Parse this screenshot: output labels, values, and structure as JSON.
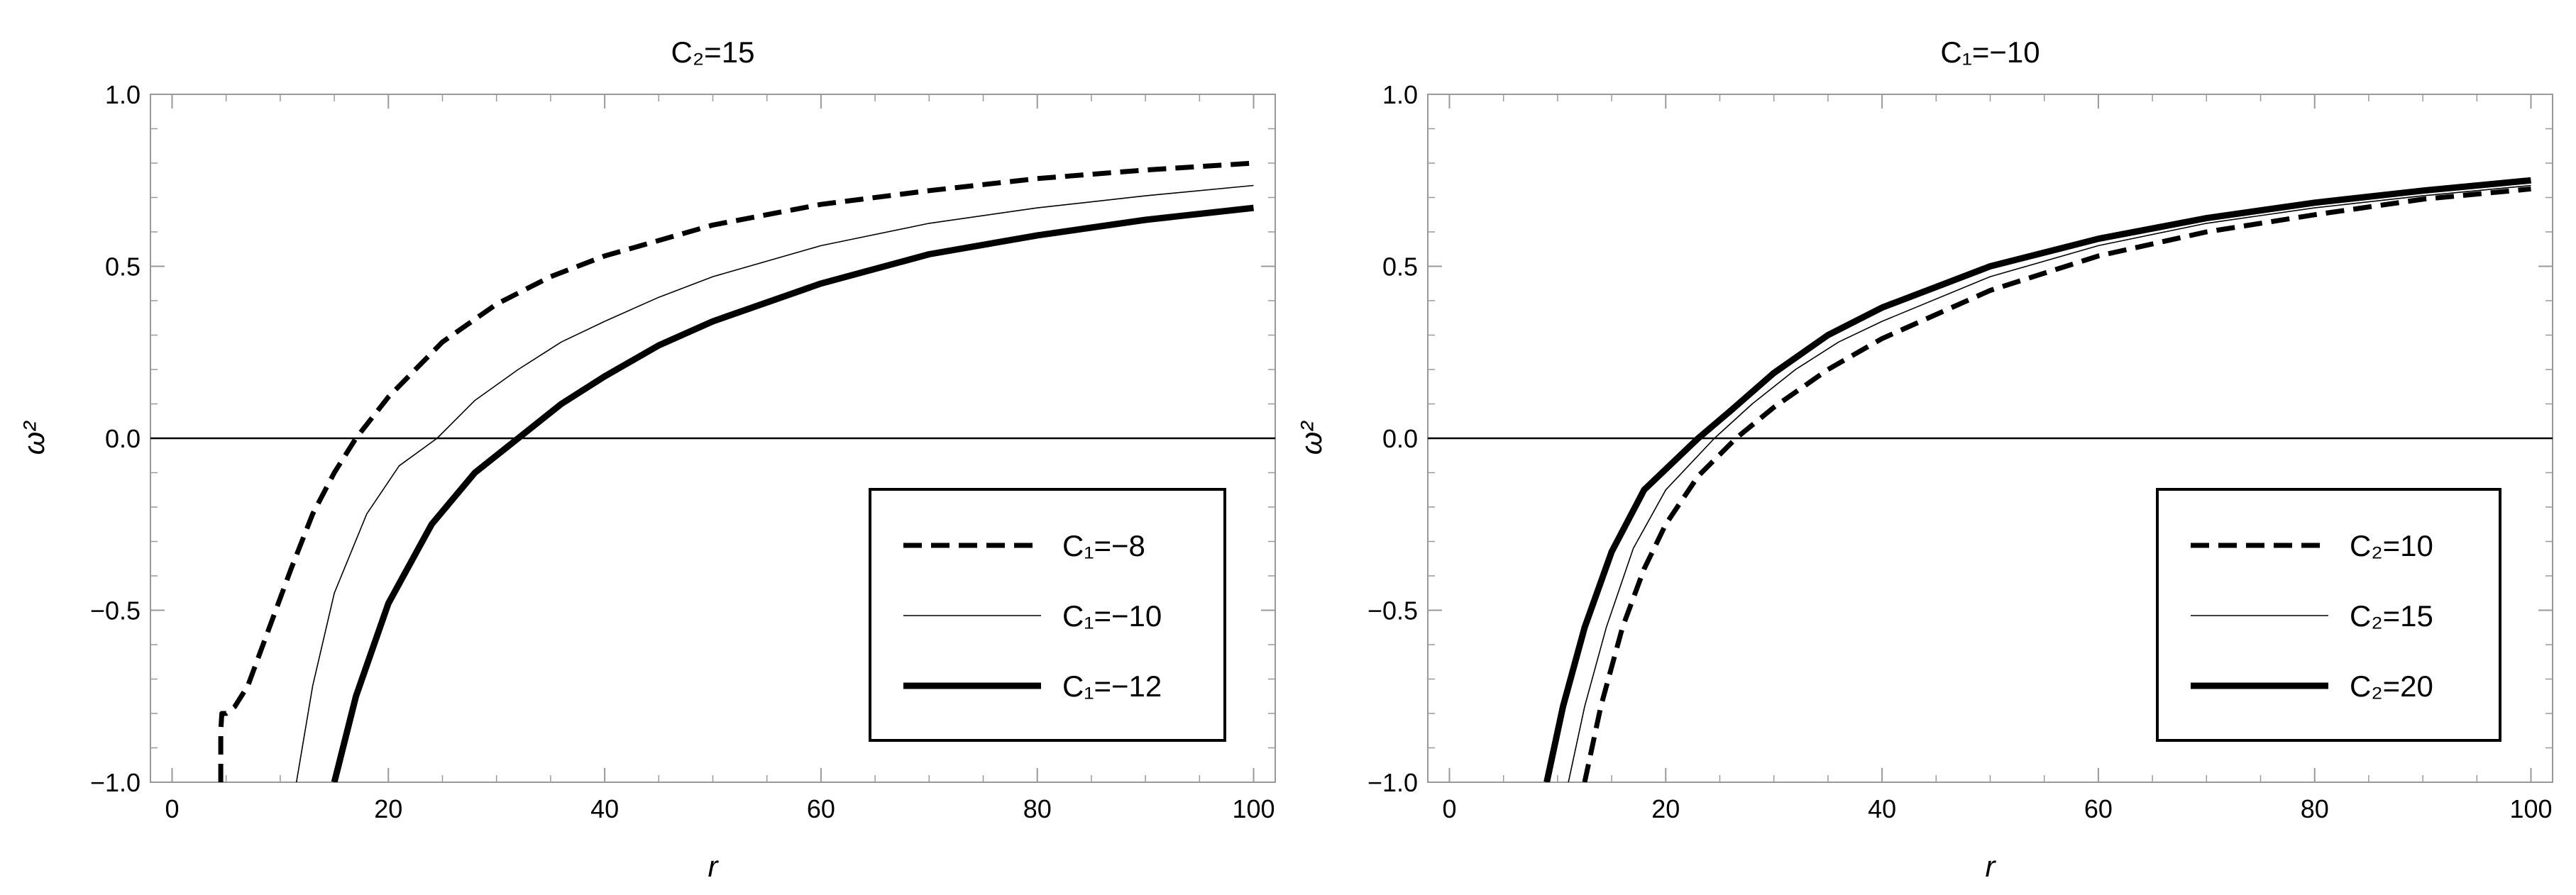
{
  "chart_data": [
    {
      "type": "line",
      "title": "C₂=15",
      "xlabel": "r",
      "ylabel": "ω²",
      "xlim": [
        -2,
        102
      ],
      "ylim": [
        -1,
        1
      ],
      "xticks": [
        0,
        20,
        40,
        60,
        80,
        100
      ],
      "yticks": [
        -1.0,
        -0.5,
        0.0,
        0.5,
        1.0
      ],
      "ytick_labels": [
        "−1.0",
        "−0.5",
        "0.0",
        "0.5",
        "1.0"
      ],
      "zero_line": true,
      "grid": false,
      "legend_position": "bottom-right",
      "series": [
        {
          "name": "C₁=−8",
          "style": "dashed",
          "weight": "thick",
          "x": [
            4.5,
            4.5,
            4.6,
            5,
            5.8,
            7,
            9,
            11,
            13,
            15,
            17,
            20,
            25,
            30,
            35,
            40,
            50,
            60,
            70,
            80,
            90,
            100
          ],
          "y": [
            -1.0,
            -0.85,
            -0.8,
            -0.8,
            -0.78,
            -0.72,
            -0.55,
            -0.38,
            -0.22,
            -0.1,
            0.0,
            0.12,
            0.28,
            0.39,
            0.47,
            0.53,
            0.62,
            0.68,
            0.72,
            0.755,
            0.78,
            0.8
          ]
        },
        {
          "name": "C₁=−10",
          "style": "solid",
          "weight": "thin",
          "x": [
            11.5,
            13,
            15,
            18,
            21,
            24.5,
            28,
            32,
            36,
            40,
            45,
            50,
            60,
            70,
            80,
            90,
            100
          ],
          "y": [
            -1.0,
            -0.72,
            -0.45,
            -0.22,
            -0.08,
            0.0,
            0.11,
            0.2,
            0.28,
            0.34,
            0.41,
            0.47,
            0.56,
            0.625,
            0.67,
            0.705,
            0.735
          ]
        },
        {
          "name": "C₁=−12",
          "style": "solid",
          "weight": "thick",
          "x": [
            15,
            17,
            20,
            24,
            28,
            32,
            36,
            40,
            45,
            50,
            60,
            70,
            80,
            90,
            100
          ],
          "y": [
            -1.0,
            -0.75,
            -0.48,
            -0.25,
            -0.1,
            0.0,
            0.1,
            0.18,
            0.27,
            0.34,
            0.45,
            0.535,
            0.59,
            0.635,
            0.67
          ]
        }
      ]
    },
    {
      "type": "line",
      "title": "C₁=−10",
      "xlabel": "r",
      "ylabel": "ω²",
      "xlim": [
        -2,
        102
      ],
      "ylim": [
        -1,
        1
      ],
      "xticks": [
        0,
        20,
        40,
        60,
        80,
        100
      ],
      "yticks": [
        -1.0,
        -0.5,
        0.0,
        0.5,
        1.0
      ],
      "ytick_labels": [
        "−1.0",
        "−0.5",
        "0.0",
        "0.5",
        "1.0"
      ],
      "zero_line": true,
      "grid": false,
      "legend_position": "bottom-right",
      "series": [
        {
          "name": "C₂=10",
          "style": "dashed",
          "weight": "thick",
          "x": [
            12.5,
            14,
            16,
            18,
            20,
            23,
            26.5,
            30,
            35,
            40,
            50,
            60,
            70,
            80,
            90,
            100
          ],
          "y": [
            -1.0,
            -0.78,
            -0.55,
            -0.38,
            -0.25,
            -0.11,
            0.0,
            0.09,
            0.2,
            0.29,
            0.43,
            0.53,
            0.6,
            0.65,
            0.695,
            0.725
          ]
        },
        {
          "name": "C₂=15",
          "style": "solid",
          "weight": "thin",
          "x": [
            11,
            12.5,
            14.5,
            17,
            20,
            24.5,
            28,
            32,
            36,
            40,
            50,
            60,
            70,
            80,
            90,
            100
          ],
          "y": [
            -1.0,
            -0.78,
            -0.55,
            -0.32,
            -0.15,
            0.0,
            0.1,
            0.2,
            0.28,
            0.34,
            0.47,
            0.56,
            0.625,
            0.67,
            0.705,
            0.735
          ]
        },
        {
          "name": "C₂=20",
          "style": "solid",
          "weight": "thick",
          "x": [
            9,
            10.5,
            12.5,
            15,
            18,
            23,
            26,
            30,
            35,
            40,
            50,
            60,
            70,
            80,
            90,
            100
          ],
          "y": [
            -1.0,
            -0.78,
            -0.55,
            -0.33,
            -0.15,
            0.0,
            0.08,
            0.19,
            0.3,
            0.38,
            0.5,
            0.58,
            0.64,
            0.685,
            0.72,
            0.75
          ]
        }
      ]
    }
  ]
}
